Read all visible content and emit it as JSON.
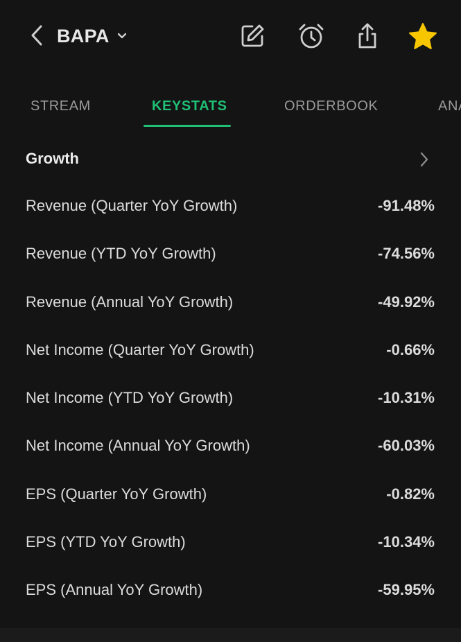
{
  "header": {
    "ticker": "BAPA",
    "back_icon": "chevron-left-icon",
    "caret_icon": "chevron-down-icon",
    "actions": [
      "edit-icon",
      "alarm-icon",
      "share-icon",
      "star-icon"
    ],
    "star_color": "#f7c600"
  },
  "tabs": [
    {
      "label": "STREAM",
      "active": false
    },
    {
      "label": "KEYSTATS",
      "active": true
    },
    {
      "label": "ORDERBOOK",
      "active": false
    },
    {
      "label": "ANA",
      "active": false
    }
  ],
  "accent_color": "#1fbf75",
  "section": {
    "title": "Growth",
    "chevron_icon": "chevron-right-icon"
  },
  "rows": [
    {
      "label": "Revenue (Quarter YoY Growth)",
      "value": "-91.48%"
    },
    {
      "label": "Revenue (YTD YoY Growth)",
      "value": "-74.56%"
    },
    {
      "label": "Revenue (Annual YoY Growth)",
      "value": "-49.92%"
    },
    {
      "label": "Net Income (Quarter YoY Growth)",
      "value": "-0.66%"
    },
    {
      "label": "Net Income (YTD YoY Growth)",
      "value": "-10.31%"
    },
    {
      "label": "Net Income (Annual YoY Growth)",
      "value": "-60.03%"
    },
    {
      "label": "EPS (Quarter YoY Growth)",
      "value": "-0.82%"
    },
    {
      "label": "EPS (YTD YoY Growth)",
      "value": "-10.34%"
    },
    {
      "label": "EPS (Annual YoY Growth)",
      "value": "-59.95%"
    }
  ]
}
